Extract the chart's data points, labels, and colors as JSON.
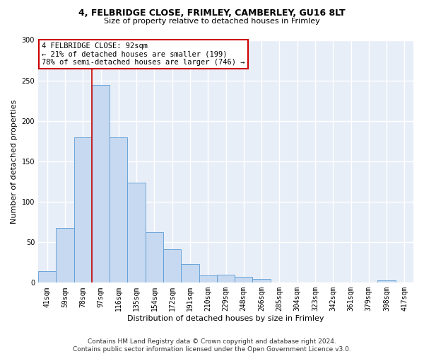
{
  "title1": "4, FELBRIDGE CLOSE, FRIMLEY, CAMBERLEY, GU16 8LT",
  "title2": "Size of property relative to detached houses in Frimley",
  "xlabel": "Distribution of detached houses by size in Frimley",
  "ylabel": "Number of detached properties",
  "categories": [
    "41sqm",
    "59sqm",
    "78sqm",
    "97sqm",
    "116sqm",
    "135sqm",
    "154sqm",
    "172sqm",
    "191sqm",
    "210sqm",
    "229sqm",
    "248sqm",
    "266sqm",
    "285sqm",
    "304sqm",
    "323sqm",
    "342sqm",
    "361sqm",
    "379sqm",
    "398sqm",
    "417sqm"
  ],
  "values": [
    14,
    68,
    180,
    244,
    180,
    124,
    62,
    41,
    23,
    9,
    10,
    7,
    5,
    0,
    0,
    0,
    0,
    0,
    0,
    3,
    0
  ],
  "bar_color": "#c6d9f0",
  "bar_edge_color": "#5b9bd5",
  "red_line_x": 2.5,
  "annotation_line1": "4 FELBRIDGE CLOSE: 92sqm",
  "annotation_line2": "← 21% of detached houses are smaller (199)",
  "annotation_line3": "78% of semi-detached houses are larger (746) →",
  "annotation_box_color": "#ffffff",
  "annotation_box_edge": "#cc0000",
  "red_line_color": "#cc0000",
  "footer_line1": "Contains HM Land Registry data © Crown copyright and database right 2024.",
  "footer_line2": "Contains public sector information licensed under the Open Government Licence v3.0.",
  "ylim": [
    0,
    300
  ],
  "yticks": [
    0,
    50,
    100,
    150,
    200,
    250,
    300
  ],
  "background_color": "#e8eef8",
  "grid_color": "#ffffff",
  "title1_fontsize": 9,
  "title2_fontsize": 8,
  "axis_label_fontsize": 8,
  "tick_fontsize": 7,
  "footer_fontsize": 6.5
}
